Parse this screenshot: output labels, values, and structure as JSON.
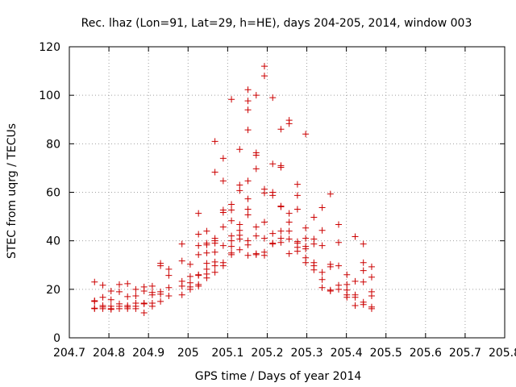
{
  "chart_data": {
    "type": "scatter",
    "title": "Rec. lhaz (Lon=91, Lat=29, h=HE), days 204-205, 2014, window 003",
    "xlabel": "GPS time / Days of year 2014",
    "ylabel": "STEC from uqrg / TECUs",
    "xlim": [
      204.7,
      205.8
    ],
    "ylim": [
      0,
      120
    ],
    "x_ticks": [
      204.7,
      204.8,
      204.9,
      205,
      205.1,
      205.2,
      205.3,
      205.4,
      205.5,
      205.6,
      205.7,
      205.8
    ],
    "x_tick_labels": [
      "204.7",
      "204.8",
      "204.9",
      "205",
      "205.1",
      "205.2",
      "205.3",
      "205.4",
      "205.5",
      "205.6",
      "205.7",
      "205.8"
    ],
    "y_ticks": [
      0,
      20,
      40,
      60,
      80,
      100,
      120
    ],
    "y_tick_labels": [
      "0",
      "20",
      "40",
      "60",
      "80",
      "100",
      "120"
    ],
    "grid": true,
    "marker": "+",
    "color": "#cc0000",
    "points": [
      [
        204.7637,
        23.0
      ],
      [
        204.7637,
        15.3
      ],
      [
        204.7637,
        15.0
      ],
      [
        204.7637,
        12.2
      ],
      [
        204.7637,
        12.0
      ],
      [
        204.7846,
        21.7
      ],
      [
        204.7846,
        16.7
      ],
      [
        204.7846,
        13.3
      ],
      [
        204.7846,
        12.7
      ],
      [
        204.7846,
        12.0
      ],
      [
        204.8054,
        19.3
      ],
      [
        204.8054,
        15.7
      ],
      [
        204.8054,
        13.0
      ],
      [
        204.8054,
        12.0
      ],
      [
        204.8054,
        11.7
      ],
      [
        204.8263,
        22.0
      ],
      [
        204.8263,
        19.0
      ],
      [
        204.8263,
        14.0
      ],
      [
        204.8263,
        13.0
      ],
      [
        204.8263,
        12.0
      ],
      [
        204.8471,
        22.3
      ],
      [
        204.8471,
        17.0
      ],
      [
        204.8471,
        13.3
      ],
      [
        204.8471,
        12.7
      ],
      [
        204.8471,
        12.0
      ],
      [
        204.8679,
        20.0
      ],
      [
        204.8679,
        17.3
      ],
      [
        204.8679,
        14.3
      ],
      [
        204.8679,
        13.0
      ],
      [
        204.8679,
        12.0
      ],
      [
        204.8888,
        21.0
      ],
      [
        204.8888,
        19.3
      ],
      [
        204.8888,
        14.3
      ],
      [
        204.8888,
        14.0
      ],
      [
        204.8888,
        10.3
      ],
      [
        204.9096,
        21.3
      ],
      [
        204.9096,
        18.7
      ],
      [
        204.9096,
        17.7
      ],
      [
        204.9096,
        14.3
      ],
      [
        204.9096,
        13.0
      ],
      [
        204.9304,
        30.7
      ],
      [
        204.9304,
        29.7
      ],
      [
        204.9304,
        19.0
      ],
      [
        204.9304,
        18.0
      ],
      [
        204.9304,
        15.0
      ],
      [
        204.9513,
        28.3
      ],
      [
        204.9513,
        25.7
      ],
      [
        204.9513,
        20.7
      ],
      [
        204.9513,
        17.3
      ],
      [
        204.9846,
        38.7
      ],
      [
        204.9846,
        31.7
      ],
      [
        204.9846,
        23.3
      ],
      [
        204.9846,
        21.3
      ],
      [
        204.9846,
        17.7
      ],
      [
        205.0054,
        30.3
      ],
      [
        205.0054,
        25.3
      ],
      [
        205.0054,
        22.7
      ],
      [
        205.0054,
        21.0
      ],
      [
        205.0054,
        20.0
      ],
      [
        205.0263,
        51.3
      ],
      [
        205.0263,
        42.7
      ],
      [
        205.0263,
        38.0
      ],
      [
        205.0263,
        34.3
      ],
      [
        205.0263,
        26.0
      ],
      [
        205.0263,
        25.7
      ],
      [
        205.0263,
        22.0
      ],
      [
        205.0263,
        21.3
      ],
      [
        205.0471,
        44.0
      ],
      [
        205.0471,
        39.0
      ],
      [
        205.0471,
        38.3
      ],
      [
        205.0471,
        35.0
      ],
      [
        205.0471,
        30.7
      ],
      [
        205.0471,
        28.3
      ],
      [
        205.0471,
        26.3
      ],
      [
        205.0471,
        24.7
      ],
      [
        205.0679,
        81.0
      ],
      [
        205.0679,
        68.3
      ],
      [
        205.0679,
        41.0
      ],
      [
        205.0679,
        40.0
      ],
      [
        205.0679,
        39.0
      ],
      [
        205.0679,
        35.3
      ],
      [
        205.0679,
        31.3
      ],
      [
        205.0679,
        29.7
      ],
      [
        205.0679,
        27.0
      ],
      [
        205.0888,
        74.0
      ],
      [
        205.0888,
        64.7
      ],
      [
        205.0888,
        52.7
      ],
      [
        205.0888,
        51.7
      ],
      [
        205.0888,
        45.7
      ],
      [
        205.0888,
        38.0
      ],
      [
        205.0888,
        31.0
      ],
      [
        205.0888,
        29.7
      ],
      [
        205.1096,
        98.3
      ],
      [
        205.1096,
        55.0
      ],
      [
        205.1096,
        52.7
      ],
      [
        205.1096,
        48.3
      ],
      [
        205.1096,
        42.0
      ],
      [
        205.1096,
        40.0
      ],
      [
        205.1096,
        37.7
      ],
      [
        205.1096,
        35.0
      ],
      [
        205.1096,
        34.3
      ],
      [
        205.1304,
        77.7
      ],
      [
        205.1304,
        63.0
      ],
      [
        205.1304,
        60.7
      ],
      [
        205.1304,
        46.7
      ],
      [
        205.1304,
        44.3
      ],
      [
        205.1304,
        42.3
      ],
      [
        205.1304,
        40.7
      ],
      [
        205.1304,
        36.3
      ],
      [
        205.1513,
        102.3
      ],
      [
        205.1513,
        97.7
      ],
      [
        205.1513,
        94.0
      ],
      [
        205.1513,
        85.7
      ],
      [
        205.1513,
        64.7
      ],
      [
        205.1513,
        57.3
      ],
      [
        205.1513,
        53.0
      ],
      [
        205.1513,
        50.7
      ],
      [
        205.1513,
        40.0
      ],
      [
        205.1513,
        38.3
      ],
      [
        205.1513,
        34.0
      ],
      [
        205.1721,
        100.0
      ],
      [
        205.1721,
        76.3
      ],
      [
        205.1721,
        75.3
      ],
      [
        205.1721,
        69.7
      ],
      [
        205.1721,
        45.7
      ],
      [
        205.1721,
        42.0
      ],
      [
        205.1721,
        34.7
      ],
      [
        205.1721,
        34.3
      ],
      [
        205.1929,
        112.0
      ],
      [
        205.1929,
        108.0
      ],
      [
        205.1929,
        61.3
      ],
      [
        205.1929,
        59.7
      ],
      [
        205.1929,
        47.7
      ],
      [
        205.1929,
        41.0
      ],
      [
        205.1929,
        35.3
      ],
      [
        205.1929,
        34.0
      ],
      [
        205.2138,
        99.0
      ],
      [
        205.2138,
        71.7
      ],
      [
        205.2138,
        60.0
      ],
      [
        205.2138,
        58.7
      ],
      [
        205.2138,
        43.0
      ],
      [
        205.2138,
        39.0
      ],
      [
        205.2138,
        38.7
      ],
      [
        205.2346,
        86.0
      ],
      [
        205.2346,
        71.0
      ],
      [
        205.2346,
        70.3
      ],
      [
        205.2346,
        54.3
      ],
      [
        205.2346,
        54.0
      ],
      [
        205.2346,
        44.0
      ],
      [
        205.2346,
        41.0
      ],
      [
        205.2346,
        39.3
      ],
      [
        205.2554,
        89.7
      ],
      [
        205.2554,
        88.3
      ],
      [
        205.2554,
        51.3
      ],
      [
        205.2554,
        47.7
      ],
      [
        205.2554,
        44.0
      ],
      [
        205.2554,
        40.7
      ],
      [
        205.2554,
        34.7
      ],
      [
        205.2763,
        63.3
      ],
      [
        205.2763,
        58.7
      ],
      [
        205.2763,
        53.0
      ],
      [
        205.2763,
        39.7
      ],
      [
        205.2763,
        39.0
      ],
      [
        205.2763,
        37.3
      ],
      [
        205.2763,
        35.7
      ],
      [
        205.2971,
        84.0
      ],
      [
        205.2971,
        45.3
      ],
      [
        205.2971,
        41.0
      ],
      [
        205.2971,
        37.7
      ],
      [
        205.2971,
        36.7
      ],
      [
        205.2971,
        33.0
      ],
      [
        205.2971,
        31.0
      ],
      [
        205.3179,
        49.7
      ],
      [
        205.3179,
        40.7
      ],
      [
        205.3179,
        38.7
      ],
      [
        205.3179,
        31.0
      ],
      [
        205.3179,
        29.7
      ],
      [
        205.3179,
        28.0
      ],
      [
        205.3388,
        53.7
      ],
      [
        205.3388,
        44.3
      ],
      [
        205.3388,
        38.0
      ],
      [
        205.3388,
        27.0
      ],
      [
        205.3388,
        24.0
      ],
      [
        205.3388,
        20.7
      ],
      [
        205.3596,
        59.3
      ],
      [
        205.3596,
        30.3
      ],
      [
        205.3596,
        29.3
      ],
      [
        205.3596,
        19.7
      ],
      [
        205.3596,
        19.3
      ],
      [
        205.3804,
        46.7
      ],
      [
        205.3804,
        39.3
      ],
      [
        205.3804,
        29.7
      ],
      [
        205.3804,
        21.7
      ],
      [
        205.3804,
        20.0
      ],
      [
        205.4013,
        26.0
      ],
      [
        205.4013,
        22.0
      ],
      [
        205.4013,
        19.7
      ],
      [
        205.4013,
        17.7
      ],
      [
        205.4013,
        16.7
      ],
      [
        205.4221,
        41.7
      ],
      [
        205.4221,
        23.3
      ],
      [
        205.4221,
        17.7
      ],
      [
        205.4221,
        16.7
      ],
      [
        205.4221,
        13.3
      ],
      [
        205.4429,
        38.7
      ],
      [
        205.4429,
        31.0
      ],
      [
        205.4429,
        27.7
      ],
      [
        205.4429,
        23.0
      ],
      [
        205.4429,
        14.7
      ],
      [
        205.4429,
        13.7
      ],
      [
        205.4638,
        29.3
      ],
      [
        205.4638,
        25.0
      ],
      [
        205.4638,
        19.0
      ],
      [
        205.4638,
        17.3
      ],
      [
        205.4638,
        12.7
      ],
      [
        205.4638,
        12.0
      ]
    ]
  }
}
